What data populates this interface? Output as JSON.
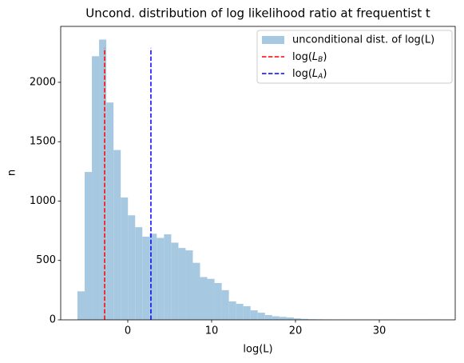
{
  "chart_data": {
    "type": "histogram",
    "title": "Uncond. distribution of log likelihood ratio at frequentist  t",
    "x_label": "log(L)",
    "y_label": "n",
    "series": [
      {
        "name": "unconditional dist. of log(L)",
        "color": "#a6c8e0",
        "bins": [
          -6,
          -5.14,
          -4.28,
          -3.42,
          -2.56,
          -1.7,
          -0.84,
          0.02,
          0.88,
          1.74,
          2.6,
          3.46,
          4.32,
          5.18,
          6.04,
          6.9,
          7.76,
          8.62,
          9.48,
          10.34,
          11.2,
          12.06,
          12.92,
          13.78,
          14.64,
          15.5,
          16.36,
          17.22,
          18.08,
          18.94,
          19.8,
          20.66,
          21.52,
          22.38,
          23.24,
          24.1,
          24.96,
          25.82,
          26.68,
          27.54,
          28.4,
          29.26,
          30.12,
          30.98,
          31.84,
          32.7,
          33.56,
          34.42,
          35.28,
          36.14,
          37.0
        ],
        "values": [
          240,
          1245,
          2220,
          2360,
          1830,
          1430,
          1030,
          880,
          780,
          700,
          725,
          690,
          720,
          650,
          605,
          585,
          480,
          360,
          345,
          310,
          250,
          155,
          135,
          115,
          80,
          60,
          40,
          30,
          25,
          20,
          12,
          8,
          5,
          4,
          3,
          2,
          2,
          1,
          1,
          1,
          1,
          0,
          0,
          1,
          0,
          0,
          0,
          0,
          0,
          1
        ]
      }
    ],
    "lines": [
      {
        "label_parts": {
          "prefix": "log(",
          "var": "L",
          "sub": "B",
          "suffix": ")"
        },
        "color": "#ff0000",
        "x": -2.76,
        "ymin": 0,
        "ymax": 2290
      },
      {
        "label_parts": {
          "prefix": "log(",
          "var": "L",
          "sub": "A",
          "suffix": ")"
        },
        "color": "#0000ff",
        "x": 2.76,
        "ymin": 0,
        "ymax": 2290
      }
    ],
    "xlim": [
      -8.0,
      39.05
    ],
    "ylim": [
      0,
      2471
    ],
    "xticks": [
      0,
      10,
      20,
      30
    ],
    "yticks": [
      0,
      500,
      1000,
      1500,
      2000
    ],
    "legend": "upper right",
    "grid": false
  }
}
